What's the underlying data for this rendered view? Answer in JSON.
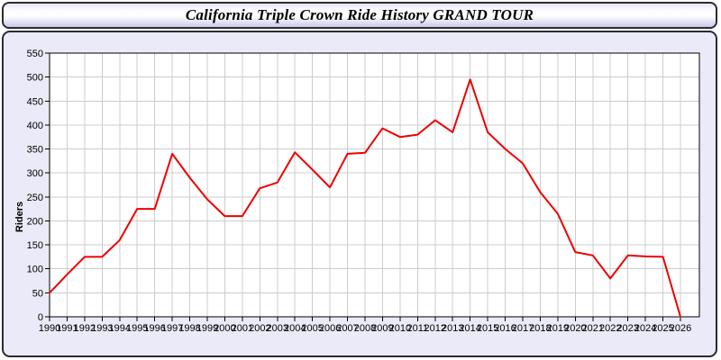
{
  "title_bar": {
    "title": "California Triple Crown Ride History GRAND TOUR"
  },
  "colors": {
    "line": "#ee0000",
    "grid": "#cccccc",
    "frame": "#000000",
    "plot_bg": "#ffffff",
    "panel_bg": "#eaeaf8",
    "title_border": "#2b2b33",
    "text": "#000000"
  },
  "chart_data": {
    "type": "line",
    "title": "California Triple Crown Ride History GRAND TOUR",
    "xlabel": "",
    "ylabel": "Riders",
    "x": [
      1990,
      1991,
      1992,
      1993,
      1994,
      1995,
      1996,
      1997,
      1998,
      1999,
      2000,
      2001,
      2002,
      2003,
      2004,
      2005,
      2006,
      2007,
      2008,
      2009,
      2010,
      2011,
      2012,
      2013,
      2014,
      2015,
      2016,
      2017,
      2018,
      2019,
      2020,
      2021,
      2022,
      2023,
      2024,
      2025,
      2026
    ],
    "series": [
      {
        "name": "Riders",
        "values": [
          50,
          88,
          125,
          125,
          160,
          225,
          225,
          340,
          290,
          245,
          210,
          210,
          268,
          280,
          343,
          307,
          270,
          340,
          342,
          393,
          375,
          380,
          410,
          385,
          495,
          385,
          350,
          320,
          260,
          215,
          135,
          128,
          80,
          128,
          126,
          125,
          0
        ]
      }
    ],
    "ylim": [
      0,
      550
    ],
    "ytick_step": 50,
    "grid": true,
    "legend_position": "none"
  }
}
